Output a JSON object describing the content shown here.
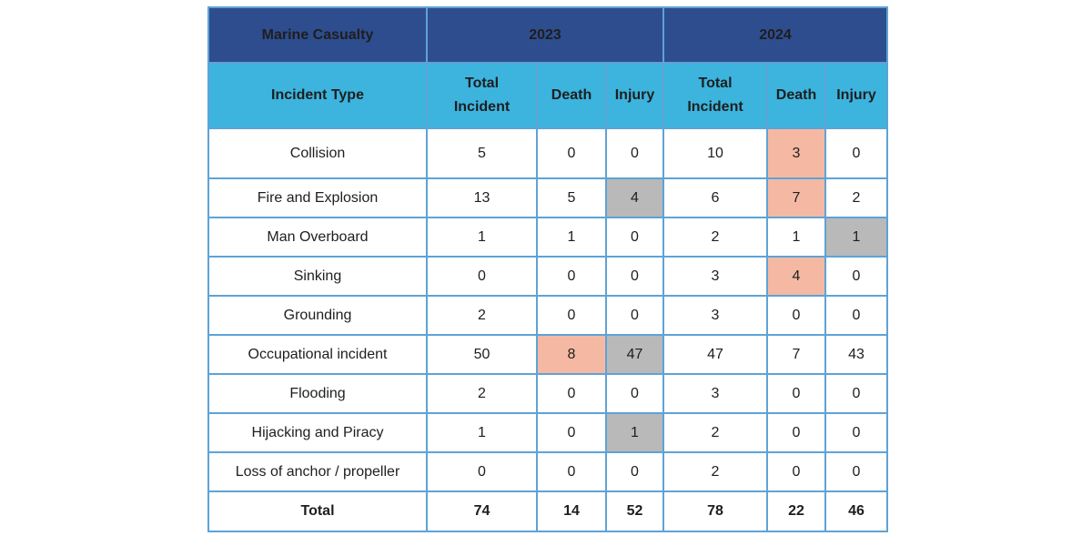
{
  "table": {
    "header": {
      "title": "Marine Casualty",
      "year_a": "2023",
      "year_b": "2024"
    },
    "subheader": {
      "incident_type": "Incident Type",
      "a_total_line1": "Total",
      "a_total_line2": "Incident",
      "a_death": "Death",
      "a_injury": "Injury",
      "b_total_line1": "Total",
      "b_total_line2": "Incident",
      "b_death": "Death",
      "b_injury": "Injury"
    },
    "rows": [
      {
        "type": "Collision",
        "y2023": {
          "total": "5",
          "death": "0",
          "injury": "0"
        },
        "y2024": {
          "total": "10",
          "death": "3",
          "injury": "0"
        }
      },
      {
        "type": "Fire and Explosion",
        "y2023": {
          "total": "13",
          "death": "5",
          "injury": "4"
        },
        "y2024": {
          "total": "6",
          "death": "7",
          "injury": "2"
        }
      },
      {
        "type": "Man Overboard",
        "y2023": {
          "total": "1",
          "death": "1",
          "injury": "0"
        },
        "y2024": {
          "total": "2",
          "death": "1",
          "injury": "1"
        }
      },
      {
        "type": "Sinking",
        "y2023": {
          "total": "0",
          "death": "0",
          "injury": "0"
        },
        "y2024": {
          "total": "3",
          "death": "4",
          "injury": "0"
        }
      },
      {
        "type": "Grounding",
        "y2023": {
          "total": "2",
          "death": "0",
          "injury": "0"
        },
        "y2024": {
          "total": "3",
          "death": "0",
          "injury": "0"
        }
      },
      {
        "type": "Occupational incident",
        "y2023": {
          "total": "50",
          "death": "8",
          "injury": "47"
        },
        "y2024": {
          "total": "47",
          "death": "7",
          "injury": "43"
        }
      },
      {
        "type": "Flooding",
        "y2023": {
          "total": "2",
          "death": "0",
          "injury": "0"
        },
        "y2024": {
          "total": "3",
          "death": "0",
          "injury": "0"
        }
      },
      {
        "type": "Hijacking and Piracy",
        "y2023": {
          "total": "1",
          "death": "0",
          "injury": "1"
        },
        "y2024": {
          "total": "2",
          "death": "0",
          "injury": "0"
        }
      },
      {
        "type": "Loss of anchor / propeller",
        "y2023": {
          "total": "0",
          "death": "0",
          "injury": "0"
        },
        "y2024": {
          "total": "2",
          "death": "0",
          "injury": "0"
        }
      }
    ],
    "total": {
      "label": "Total",
      "y2023": {
        "total": "74",
        "death": "14",
        "injury": "52"
      },
      "y2024": {
        "total": "78",
        "death": "22",
        "injury": "46"
      }
    }
  },
  "colors": {
    "header_dark": "#2e4d8f",
    "header_light": "#3cb4de",
    "grid": "#5ea3d6",
    "highlight_salmon": "#f5b9a3",
    "highlight_gray": "#b9b9b9"
  }
}
